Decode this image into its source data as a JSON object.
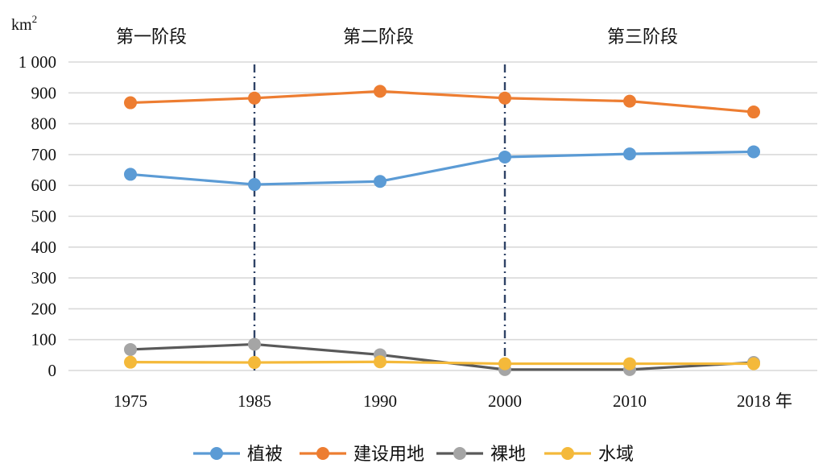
{
  "chart_data": {
    "type": "line",
    "categories": [
      "1975",
      "1985",
      "1990",
      "2000",
      "2010",
      "2018"
    ],
    "x_unit": "年",
    "y_unit": "km",
    "y_unit_superscript": "2",
    "ylim": [
      0,
      1000
    ],
    "yticks": [
      {
        "value": 0,
        "label": "0"
      },
      {
        "value": 100,
        "label": "100"
      },
      {
        "value": 200,
        "label": "200"
      },
      {
        "value": 300,
        "label": "300"
      },
      {
        "value": 400,
        "label": "400"
      },
      {
        "value": 500,
        "label": "500"
      },
      {
        "value": 600,
        "label": "600"
      },
      {
        "value": 700,
        "label": "700"
      },
      {
        "value": 800,
        "label": "800"
      },
      {
        "value": 900,
        "label": "900"
      },
      {
        "value": 1000,
        "label": "1 000"
      }
    ],
    "grid": true,
    "legend_position": "bottom",
    "series": [
      {
        "name": "植被",
        "color": "#5b9bd5",
        "values": [
          636,
          603,
          613,
          692,
          702,
          709
        ]
      },
      {
        "name": "建设用地",
        "color": "#ed7d31",
        "values": [
          868,
          883,
          905,
          883,
          873,
          838
        ]
      },
      {
        "name": "裸地",
        "color": "#a5a5a5",
        "line_color": "#595959",
        "values": [
          68,
          85,
          51,
          3,
          3,
          26
        ]
      },
      {
        "name": "水域",
        "color": "#f4b93a",
        "values": [
          27,
          26,
          28,
          22,
          22,
          22
        ]
      }
    ],
    "stages": [
      {
        "label": "第一阶段"
      },
      {
        "label": "第二阶段"
      },
      {
        "label": "第三阶段"
      }
    ],
    "stage_dividers_after_categories": [
      "1985",
      "2000"
    ]
  }
}
